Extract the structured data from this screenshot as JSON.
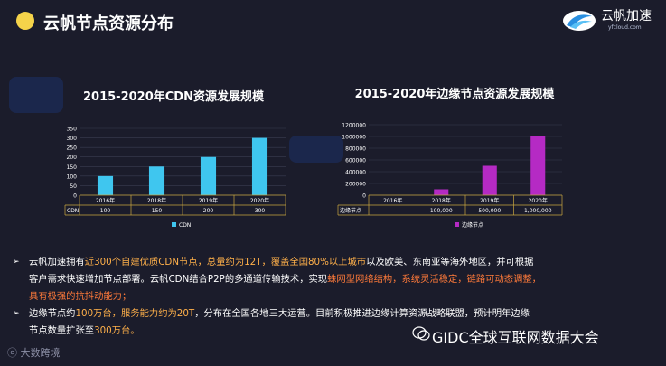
{
  "header": {
    "title": "云帆节点资源分布"
  },
  "logo": {
    "name": "云帆加速",
    "sub": "yfcloud.com"
  },
  "chart_data": [
    {
      "type": "bar",
      "title": "2015-2020年CDN资源发展规模",
      "categories": [
        "2016年",
        "2018年",
        "2019年",
        "2020年"
      ],
      "series": [
        {
          "name": "CDN",
          "values": [
            100,
            150,
            200,
            300
          ]
        }
      ],
      "table_values": [
        "100",
        "150",
        "200",
        "300"
      ],
      "ylim": [
        0,
        350
      ],
      "yticks": [
        "0",
        "50",
        "100",
        "150",
        "200",
        "250",
        "300",
        "350"
      ],
      "color": "#3fc6ef",
      "legend_position": "bottom",
      "grid": true
    },
    {
      "type": "bar",
      "title": "2015-2020年边缘节点资源发展规模",
      "categories": [
        "2016年",
        "2018年",
        "2019年",
        "2020年"
      ],
      "series": [
        {
          "name": "边缘节点",
          "values": [
            0,
            100000,
            500000,
            1000000
          ]
        }
      ],
      "table_values": [
        "",
        "100,000",
        "500,000",
        "1,000,000"
      ],
      "ylim": [
        0,
        1200000
      ],
      "yticks": [
        "0",
        "200000",
        "400000",
        "600000",
        "800000",
        "1000000",
        "1200000"
      ],
      "color": "#b52ac4",
      "legend_position": "bottom",
      "grid": true
    }
  ],
  "bullets": {
    "b1_p1": "云帆加速拥有",
    "b1_h1": "近300个自建优质CDN节点，总量约为12T，覆盖全国80%以上城市",
    "b1_p2": "以及欧美、东南亚等海外地区，并可根据",
    "b1_l2": "客户需求快速增加节点部署。云帆CDN结合P2P的多通道传输技术，实现",
    "b1_h2": "蛛网型网络结构，系统灵活稳定，链路可动态调整，",
    "b1_h3": "具有极强的抗抖动能力；",
    "b2_p1": "边缘节点约",
    "b2_h1": "100万台，服务能力约为20T",
    "b2_p2": "，分布在全国各地三大运营。目前积极推进边缘计算资源战略联盟，预计明年边缘",
    "b2_l2a": "节点数量扩张至",
    "b2_l2h": "300万台。"
  },
  "watermark": {
    "left": "大数跨境",
    "right": "GIDC全球互联网数据大会"
  },
  "colors": {
    "accent_yellow": "#f5d34a",
    "highlight": "#ffb04a"
  }
}
